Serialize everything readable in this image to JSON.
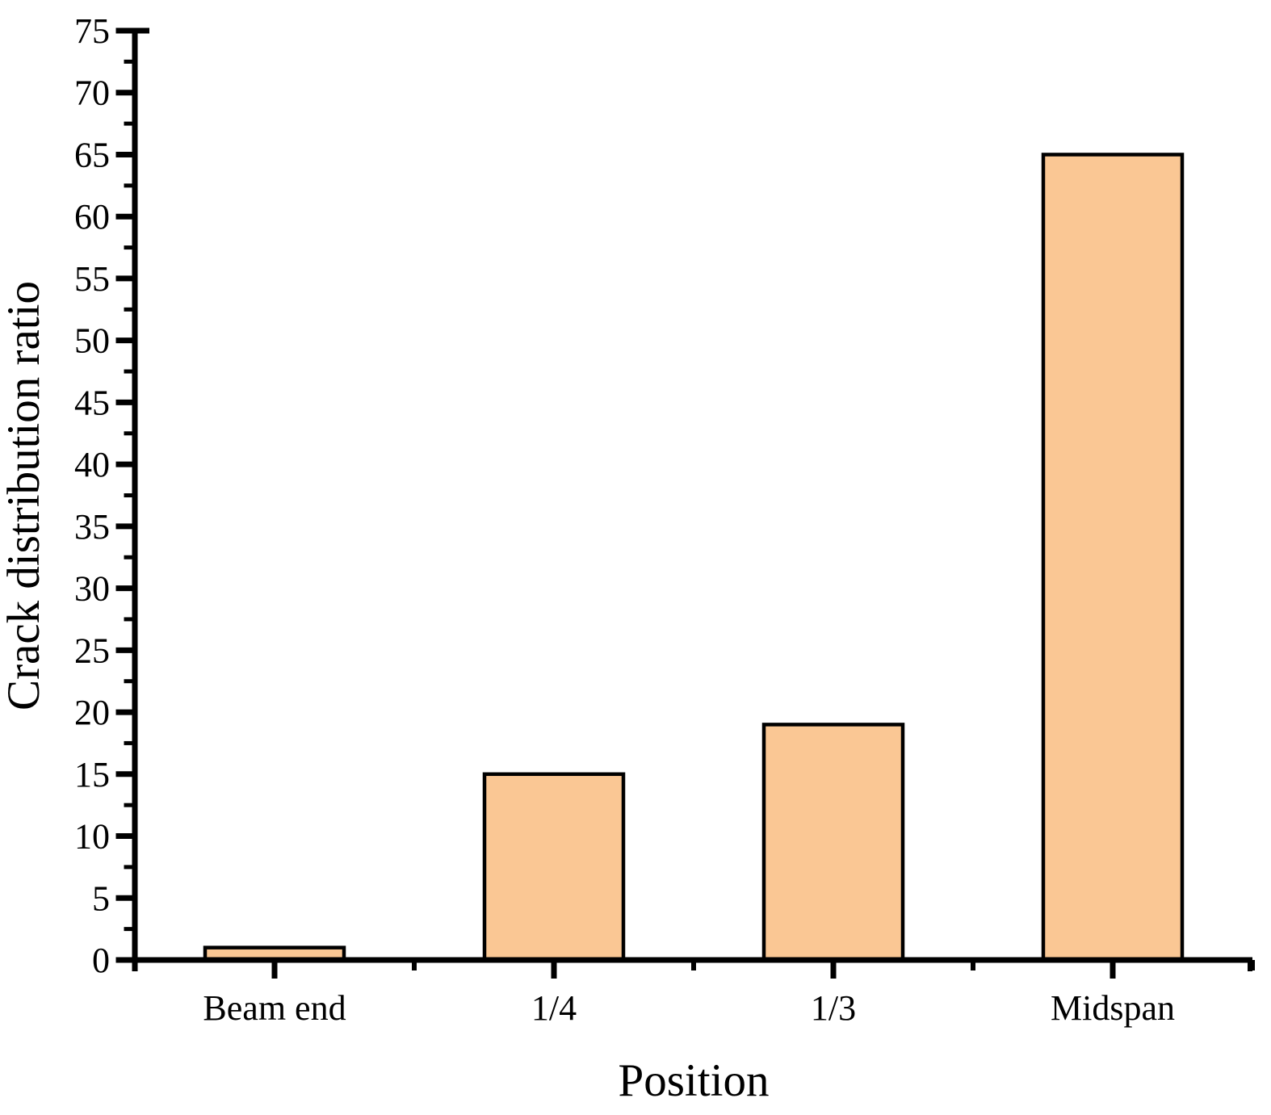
{
  "chart_data": {
    "type": "bar",
    "categories": [
      "Beam end",
      "1/4",
      "1/3",
      "Midspan"
    ],
    "values": [
      1,
      15,
      19,
      65
    ],
    "xlabel": "Position",
    "ylabel": "Crack distribution ratio",
    "ylim": [
      0,
      75
    ],
    "y_major_tick_step": 5,
    "y_minor_tick_step": 2.5,
    "y_tick_labels": [
      "0",
      "5",
      "10",
      "15",
      "20",
      "25",
      "30",
      "35",
      "40",
      "45",
      "50",
      "55",
      "60",
      "65",
      "70",
      "75"
    ],
    "grid": false,
    "legend": false,
    "colors": {
      "bar_fill": "#FAC794",
      "bar_border": "#000000",
      "axis": "#000000",
      "text": "#000000",
      "background": "#FFFFFF"
    }
  }
}
